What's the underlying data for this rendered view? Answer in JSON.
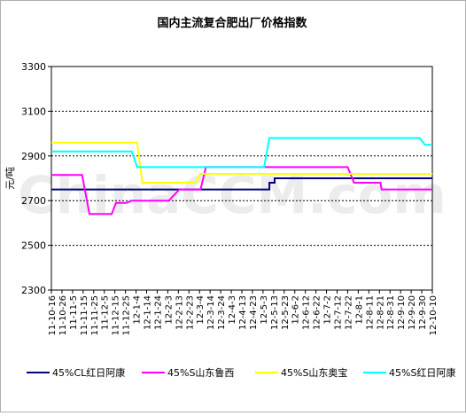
{
  "chart_data": {
    "type": "line",
    "title": "国内主流复合肥出厂价格指数",
    "watermark": "ChinaCCM.com",
    "ylabel": "元/吨",
    "ylim": [
      2300,
      3300
    ],
    "yticks": [
      "2300",
      "2500",
      "2700",
      "2900",
      "3100",
      "3300"
    ],
    "ytick_values": [
      2300,
      2500,
      2700,
      2900,
      3100,
      3300
    ],
    "grid": true,
    "legend_position": "bottom",
    "x_labels": [
      "11-10-16",
      "11-10-26",
      "11-11-5",
      "11-11-15",
      "11-11-25",
      "11-12-5",
      "11-12-15",
      "11-12-25",
      "12-1-4",
      "12-1-14",
      "12-1-24",
      "12-2-3",
      "12-2-13",
      "12-2-23",
      "12-3-4",
      "12-3-14",
      "12-3-24",
      "12-4-3",
      "12-4-13",
      "12-4-23",
      "12-5-3",
      "12-5-13",
      "12-5-23",
      "12-6-2",
      "12-6-12",
      "12-6-22",
      "12-7-2",
      "12-7-12",
      "12-7-22",
      "12-8-1",
      "12-8-11",
      "12-8-21",
      "12-8-31",
      "12-9-10",
      "12-9-20",
      "12-9-30",
      "12-10-10"
    ],
    "x_range": [
      0,
      36
    ],
    "series": [
      {
        "name": "45%CL红日阿康",
        "color": "#000080",
        "points": [
          [
            0,
            2750
          ],
          [
            20.6,
            2750
          ],
          [
            20.6,
            2780
          ],
          [
            21.1,
            2780
          ],
          [
            21.1,
            2800
          ],
          [
            36,
            2800
          ]
        ]
      },
      {
        "name": "45%S山东鲁西",
        "color": "#ff00ff",
        "points": [
          [
            0,
            2815
          ],
          [
            2.9,
            2815
          ],
          [
            3.6,
            2640
          ],
          [
            5.7,
            2640
          ],
          [
            6.1,
            2690
          ],
          [
            7.1,
            2690
          ],
          [
            7.6,
            2700
          ],
          [
            11.1,
            2700
          ],
          [
            12.1,
            2750
          ],
          [
            14.1,
            2750
          ],
          [
            14.6,
            2850
          ],
          [
            28,
            2850
          ],
          [
            28.6,
            2780
          ],
          [
            31.1,
            2780
          ],
          [
            31.2,
            2750
          ],
          [
            36,
            2750
          ]
        ]
      },
      {
        "name": "45%S山东奥宝",
        "color": "#ffff00",
        "points": [
          [
            0,
            2960
          ],
          [
            8.1,
            2960
          ],
          [
            8.6,
            2780
          ],
          [
            13.6,
            2780
          ],
          [
            14.1,
            2820
          ],
          [
            36,
            2820
          ]
        ]
      },
      {
        "name": "45%S红日阿康",
        "color": "#00ffff",
        "points": [
          [
            0,
            2920
          ],
          [
            7.6,
            2920
          ],
          [
            8.1,
            2850
          ],
          [
            20.1,
            2850
          ],
          [
            20.6,
            2980
          ],
          [
            34.8,
            2980
          ],
          [
            35.3,
            2950
          ],
          [
            36,
            2950
          ]
        ]
      }
    ]
  }
}
